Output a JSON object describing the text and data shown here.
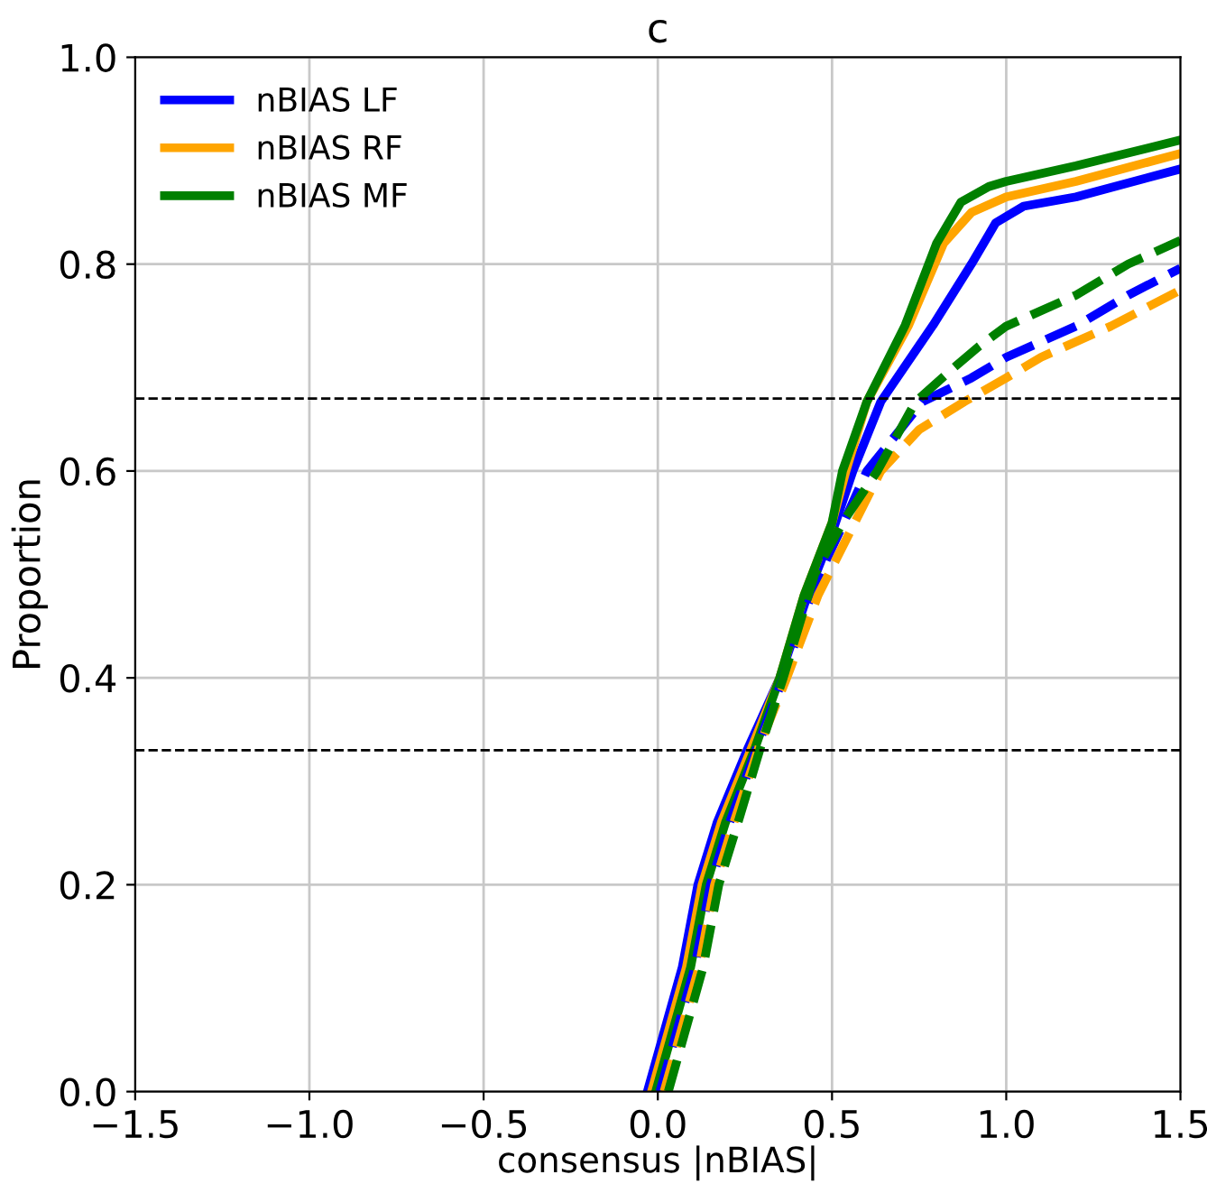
{
  "chart_data": {
    "type": "line",
    "title": "c",
    "xlabel": "consensus |nBIAS|",
    "ylabel": "Proportion",
    "xlim": [
      -1.5,
      1.5
    ],
    "xticks": [
      {
        "value": -1.5,
        "label": "−1.5"
      },
      {
        "value": -1.0,
        "label": "−1.0"
      },
      {
        "value": -0.5,
        "label": "−0.5"
      },
      {
        "value": 0.0,
        "label": "0.0"
      },
      {
        "value": 0.5,
        "label": "0.5"
      },
      {
        "value": 1.0,
        "label": "1.0"
      },
      {
        "value": 1.5,
        "label": "1.5"
      }
    ],
    "ylim": [
      0,
      1
    ],
    "yticks": [
      {
        "value": 0,
        "label": "0.0"
      },
      {
        "value": 0.2,
        "label": "0.2"
      },
      {
        "value": 0.4,
        "label": "0.4"
      },
      {
        "value": 0.6,
        "label": "0.6"
      },
      {
        "value": 0.8,
        "label": "0.8"
      },
      {
        "value": 1.0,
        "label": "1.0"
      }
    ],
    "grid": true,
    "legend": "top left",
    "marker": "none",
    "series": [
      {
        "name": "nBIAS LF",
        "color": "#0000ff",
        "line_style": "solid",
        "x": [
          -0.03,
          0.02,
          0.07,
          0.115,
          0.17,
          0.26,
          0.35,
          0.43,
          0.5,
          0.56,
          0.64,
          0.79,
          0.9,
          0.97,
          1.05,
          1.2,
          1.5
        ],
        "values": [
          0,
          0.06,
          0.12,
          0.2,
          0.26,
          0.333,
          0.4,
          0.48,
          0.54,
          0.6,
          0.667,
          0.741,
          0.8,
          0.84,
          0.856,
          0.865,
          0.892
        ]
      },
      {
        "name": "nBIAS RF",
        "color": "#ffa500",
        "line_style": "solid",
        "x": [
          -0.018,
          0.032,
          0.082,
          0.127,
          0.182,
          0.27,
          0.35,
          0.42,
          0.5,
          0.54,
          0.6,
          0.72,
          0.82,
          0.9,
          1.0,
          1.2,
          1.5
        ],
        "values": [
          0,
          0.06,
          0.12,
          0.2,
          0.26,
          0.333,
          0.4,
          0.48,
          0.55,
          0.6,
          0.667,
          0.741,
          0.82,
          0.85,
          0.865,
          0.88,
          0.907
        ]
      },
      {
        "name": "nBIAS MF",
        "color": "#008000",
        "line_style": "solid",
        "x": [
          -0.006,
          0.044,
          0.094,
          0.139,
          0.194,
          0.28,
          0.35,
          0.42,
          0.5,
          0.53,
          0.6,
          0.71,
          0.8,
          0.87,
          0.95,
          1.0,
          1.2,
          1.5
        ],
        "values": [
          0,
          0.06,
          0.12,
          0.2,
          0.26,
          0.333,
          0.4,
          0.48,
          0.55,
          0.6,
          0.667,
          0.741,
          0.82,
          0.86,
          0.875,
          0.88,
          0.895,
          0.92
        ]
      },
      {
        "color": "#0000ff",
        "line_style": "dashed",
        "x": [
          0.006,
          0.056,
          0.106,
          0.151,
          0.206,
          0.285,
          0.36,
          0.45,
          0.52,
          0.6,
          0.76,
          0.9,
          1.0,
          1.2,
          1.35,
          1.5
        ],
        "values": [
          0,
          0.06,
          0.12,
          0.2,
          0.26,
          0.333,
          0.4,
          0.49,
          0.54,
          0.6,
          0.667,
          0.69,
          0.71,
          0.74,
          0.77,
          0.796
        ]
      },
      {
        "color": "#ffa500",
        "line_style": "dashed",
        "x": [
          0.018,
          0.068,
          0.118,
          0.163,
          0.218,
          0.29,
          0.37,
          0.46,
          0.55,
          0.64,
          0.75,
          0.88,
          1.0,
          1.1,
          1.3,
          1.5
        ],
        "values": [
          0,
          0.06,
          0.12,
          0.2,
          0.26,
          0.333,
          0.4,
          0.48,
          0.54,
          0.6,
          0.64,
          0.667,
          0.69,
          0.71,
          0.74,
          0.775
        ]
      },
      {
        "color": "#008000",
        "line_style": "dashed",
        "x": [
          0.03,
          0.08,
          0.13,
          0.175,
          0.23,
          0.295,
          0.36,
          0.45,
          0.53,
          0.63,
          0.74,
          0.85,
          0.92,
          1.0,
          1.2,
          1.35,
          1.5
        ],
        "values": [
          0,
          0.06,
          0.12,
          0.2,
          0.26,
          0.333,
          0.4,
          0.5,
          0.55,
          0.6,
          0.667,
          0.7,
          0.72,
          0.74,
          0.77,
          0.8,
          0.823
        ]
      }
    ],
    "ref_lines": [
      {
        "axis": "y",
        "value": 0.33,
        "color": "#000000",
        "line_style": "dashed"
      },
      {
        "axis": "y",
        "value": 0.67,
        "color": "#000000",
        "line_style": "dashed"
      }
    ]
  }
}
